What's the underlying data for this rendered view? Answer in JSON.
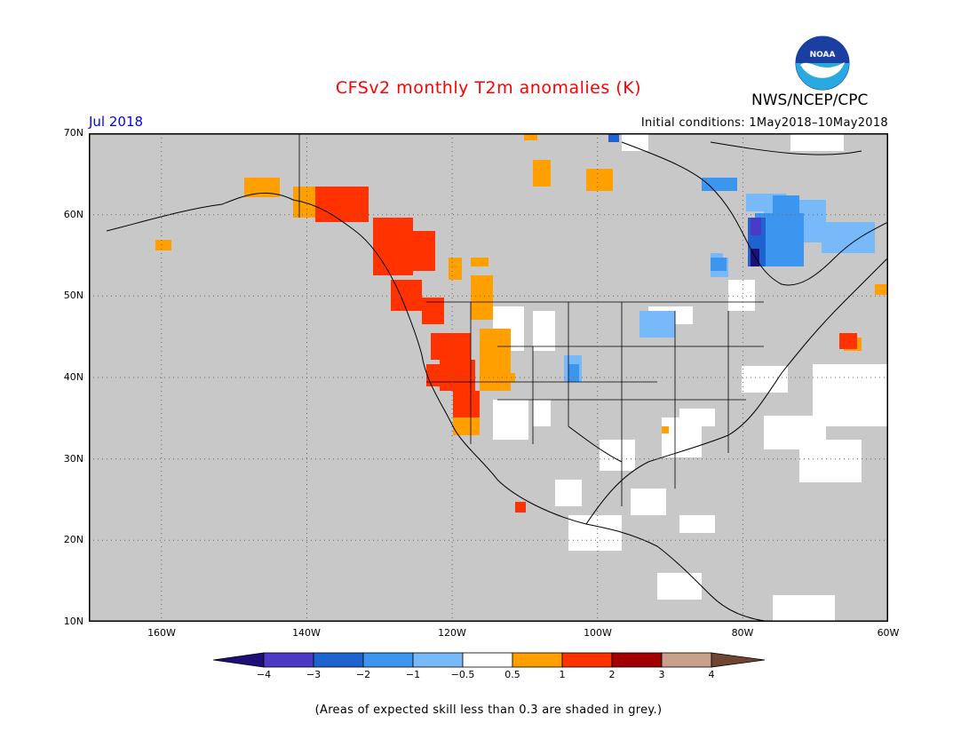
{
  "header": {
    "title": "CFSv2 monthly T2m anomalies (K)",
    "period": "Jul 2018",
    "initial_conditions": "Initial conditions: 1May2018–10May2018",
    "org": "NWS/NCEP/CPC",
    "logo_text": "NOAA"
  },
  "axes": {
    "lat_labels": [
      "70N",
      "60N",
      "50N",
      "40N",
      "30N",
      "20N",
      "10N"
    ],
    "lon_labels": [
      "160W",
      "140W",
      "120W",
      "100W",
      "80W",
      "60W"
    ]
  },
  "colorbar": {
    "labels": [
      "−4",
      "−3",
      "−2",
      "−1",
      "−0.5",
      "0.5",
      "1",
      "2",
      "3",
      "4"
    ],
    "colors": {
      "below_-4": "#1c0f78",
      "-4_-3": "#4b3ac8",
      "-3_-2": "#1e64d0",
      "-2_-1": "#3c96f0",
      "-1_-0.5": "#78b9fa",
      "-0.5_0.5": "#ffffff",
      "0.5_1": "#ffa000",
      "1_2": "#ff3200",
      "2_3": "#a00000",
      "3_4": "#c8a08c",
      "above_4": "#6e4632"
    }
  },
  "map_colors": {
    "skill_grey": "#c8c8c8",
    "coast": "#000000"
  },
  "footnote": "(Areas of expected skill less than 0.3 are shaded in grey.)"
}
